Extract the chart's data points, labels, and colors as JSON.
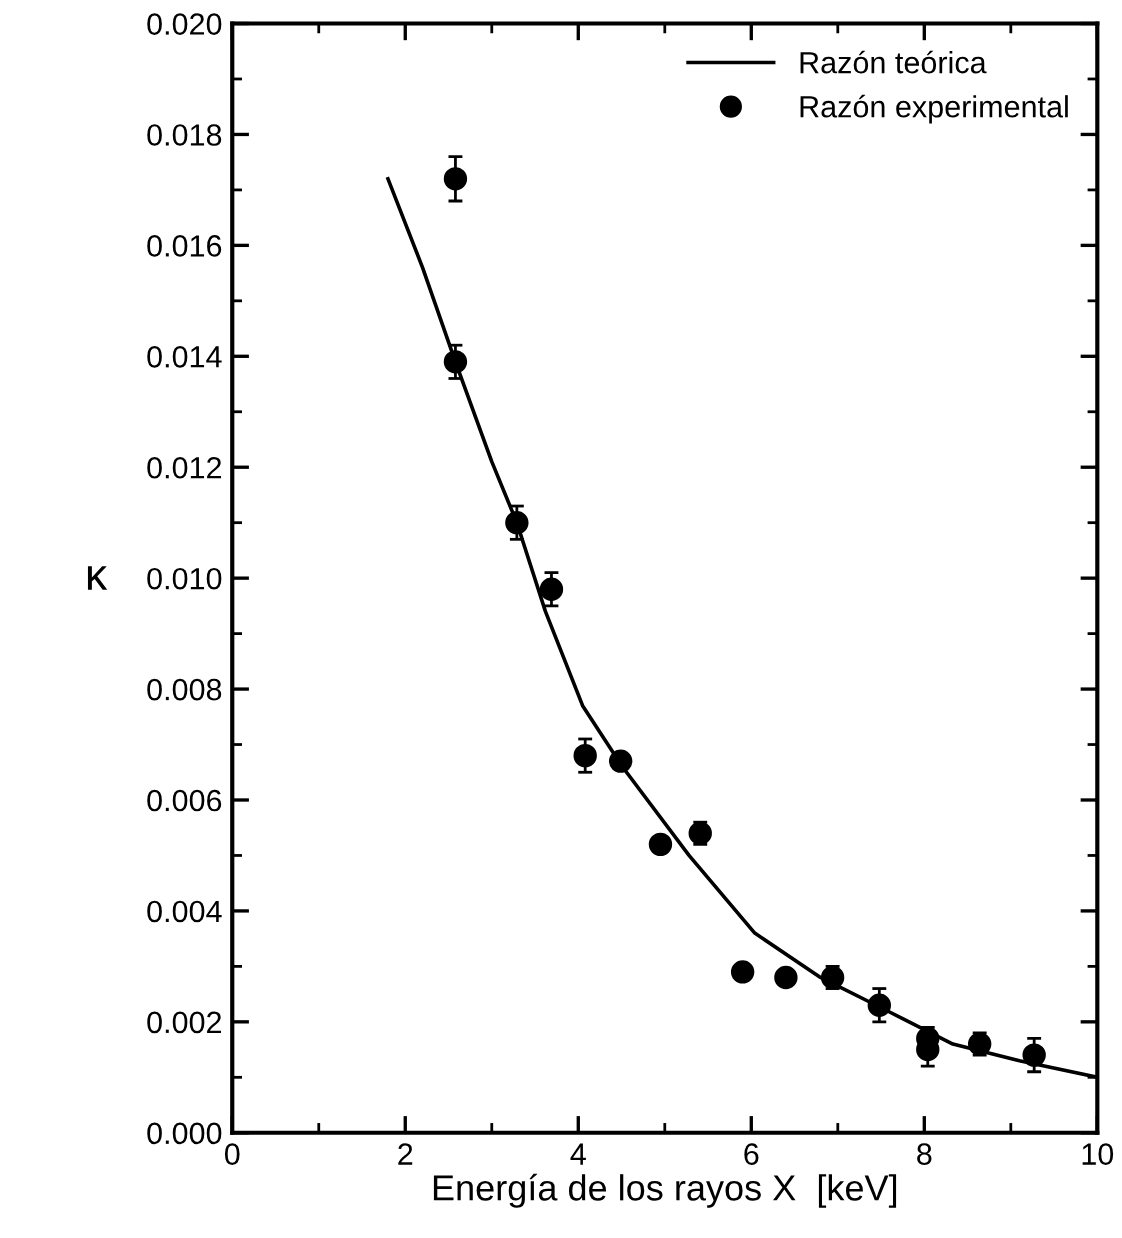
{
  "chart_data": {
    "type": "scatter",
    "xlabel": "Energía de los rayos X  [keV]",
    "ylabel": "κ",
    "xlim": [
      0,
      10
    ],
    "ylim": [
      0,
      0.02
    ],
    "xticks": [
      0,
      2,
      4,
      6,
      8,
      10
    ],
    "yticks": [
      {
        "value": 0,
        "label": "0.000"
      },
      {
        "value": 0.002,
        "label": "0.002"
      },
      {
        "value": 0.004,
        "label": "0.004"
      },
      {
        "value": 0.006,
        "label": "0.006"
      },
      {
        "value": 0.008,
        "label": "0.008"
      },
      {
        "value": 0.01,
        "label": "0.010"
      },
      {
        "value": 0.012,
        "label": "0.012"
      },
      {
        "value": 0.014,
        "label": "0.014"
      },
      {
        "value": 0.016,
        "label": "0.016"
      },
      {
        "value": 0.018,
        "label": "0.018"
      },
      {
        "value": 0.02,
        "label": "0.020"
      }
    ],
    "grid": false,
    "legend": "top right",
    "series": [
      {
        "name": "Razón teórica",
        "type": "line",
        "color": "#000000",
        "marker": "none",
        "line_style": "solid",
        "x": [
          1.8,
          2.2,
          2.58,
          3.0,
          3.29,
          3.62,
          4.05,
          4.51,
          5.28,
          6.04,
          6.8,
          7.57,
          8.33,
          9.1,
          10.0
        ],
        "values": [
          0.0172,
          0.0156,
          0.0139,
          0.0121,
          0.011,
          0.0094,
          0.0077,
          0.0066,
          0.005,
          0.0036,
          0.0028,
          0.0022,
          0.0016,
          0.0013,
          0.001
        ]
      },
      {
        "name": "Razón experimental",
        "color": "#000000",
        "marker": "circle",
        "x": [
          2.58,
          2.58,
          3.29,
          3.69,
          4.08,
          4.49,
          4.95,
          5.41,
          5.9,
          6.4,
          6.94,
          7.48,
          8.04,
          8.04,
          8.64,
          9.27
        ],
        "values": [
          0.0172,
          0.0139,
          0.011,
          0.0098,
          0.0068,
          0.0067,
          0.0052,
          0.0054,
          0.0029,
          0.0028,
          0.0028,
          0.0023,
          0.0017,
          0.0015,
          0.0016,
          0.0014
        ],
        "errors": [
          0.0004,
          0.0003,
          0.0003,
          0.0003,
          0.0003,
          0.0001,
          0.0001,
          0.0002,
          0.0001,
          0.0001,
          0.0002,
          0.0003,
          0.0002,
          0.0003,
          0.0002,
          0.0003
        ]
      }
    ]
  }
}
